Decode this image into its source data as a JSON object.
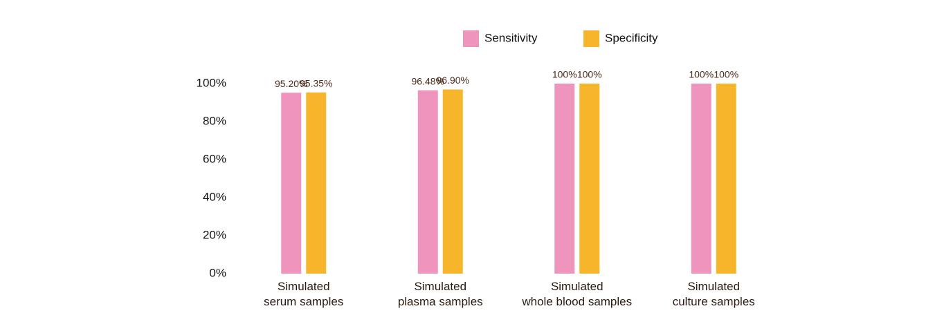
{
  "chart_data": {
    "type": "bar",
    "categories": [
      "Simulated\nserum samples",
      "Simulated\nplasma samples",
      "Simulated\nwhole blood samples",
      "Simulated\nculture samples"
    ],
    "series": [
      {
        "name": "Sensitivity",
        "color": "#ee94bd",
        "values": [
          95.2,
          96.48,
          100,
          100
        ],
        "value_labels": [
          "95.20%",
          "96.48%",
          "100%",
          "100%"
        ]
      },
      {
        "name": "Specificity",
        "color": "#f7b52c",
        "values": [
          95.35,
          96.9,
          100,
          100
        ],
        "value_labels": [
          "95.35%",
          "96.90%",
          "100%",
          "100%"
        ]
      }
    ],
    "ylim": [
      0,
      100
    ],
    "yticks": [
      {
        "value": 0,
        "label": "0%"
      },
      {
        "value": 20,
        "label": "20%"
      },
      {
        "value": 40,
        "label": "40%"
      },
      {
        "value": 60,
        "label": "60%"
      },
      {
        "value": 80,
        "label": "80%"
      },
      {
        "value": 100,
        "label": "100%"
      }
    ],
    "grid": false,
    "legend": "top"
  }
}
